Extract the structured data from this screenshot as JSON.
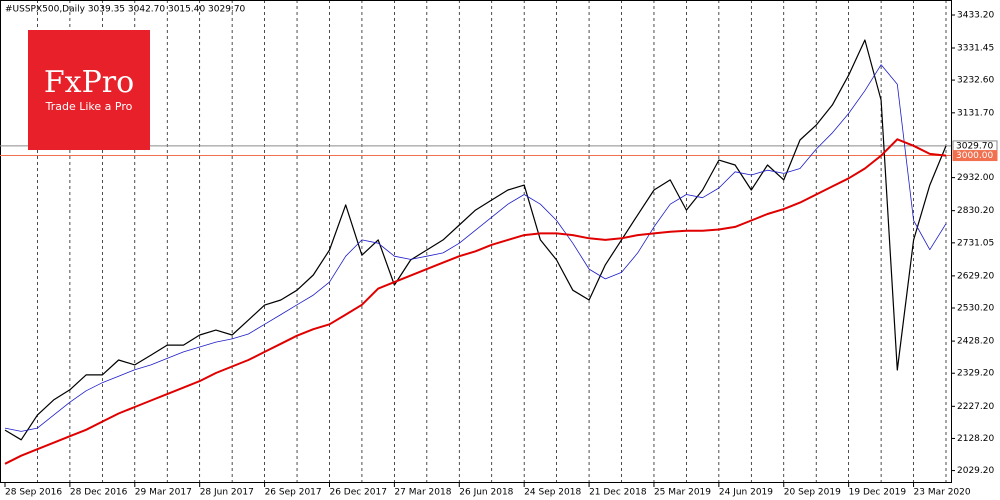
{
  "chart_data": {
    "type": "line",
    "title": "#USSPX500,Daily  3039.35 3042.70 3015.40 3029.70",
    "logo": {
      "brand": "FxPro",
      "tagline": "Trade Like a Pro",
      "color": "#e8202a"
    },
    "categories": [
      "28 Sep 2016",
      null,
      null,
      null,
      "28 Dec 2016",
      null,
      null,
      null,
      "29 Mar 2017",
      null,
      null,
      null,
      "28 Jun 2017",
      null,
      null,
      null,
      "26 Sep 2017",
      null,
      null,
      null,
      "26 Dec 2017",
      null,
      null,
      null,
      "27 Mar 2018",
      null,
      null,
      null,
      "26 Jun 2018",
      null,
      null,
      null,
      "24 Sep 2018",
      null,
      null,
      null,
      "21 Dec 2018",
      null,
      null,
      null,
      "25 Mar 2019",
      null,
      null,
      null,
      "24 Jun 2019",
      null,
      null,
      null,
      "20 Sep 2019",
      null,
      null,
      null,
      "19 Dec 2019",
      null,
      null,
      null,
      "23 Mar 2020",
      null,
      null
    ],
    "series": [
      {
        "color": "#000000",
        "width": 1.2,
        "values": [
          2154,
          2124,
          2200,
          2247,
          2278,
          2324,
          2324,
          2370,
          2355,
          2385,
          2416,
          2416,
          2447,
          2462,
          2447,
          2493,
          2539,
          2555,
          2585,
          2632,
          2709,
          2848,
          2693,
          2740,
          2601,
          2678,
          2709,
          2740,
          2786,
          2832,
          2863,
          2894,
          2909,
          2740,
          2678,
          2585,
          2555,
          2663,
          2740,
          2817,
          2894,
          2925,
          2832,
          2894,
          2986,
          2971,
          2894,
          2971,
          2925,
          3048,
          3094,
          3156,
          3248,
          3356,
          3171,
          2339,
          2740,
          2909,
          3029.7
        ]
      },
      {
        "color": "#1c1cc8",
        "width": 0.8,
        "values": [
          2160,
          2150,
          2160,
          2200,
          2240,
          2275,
          2300,
          2320,
          2340,
          2355,
          2375,
          2395,
          2410,
          2425,
          2435,
          2450,
          2480,
          2510,
          2540,
          2570,
          2610,
          2690,
          2740,
          2730,
          2690,
          2680,
          2690,
          2700,
          2730,
          2770,
          2810,
          2850,
          2880,
          2850,
          2800,
          2730,
          2650,
          2620,
          2640,
          2700,
          2780,
          2850,
          2880,
          2870,
          2900,
          2950,
          2940,
          2955,
          2945,
          2960,
          3020,
          3070,
          3130,
          3200,
          3280,
          3220,
          2800,
          2710,
          2790
        ]
      },
      {
        "color": "#e00000",
        "width": 2,
        "values": [
          2050,
          2075,
          2095,
          2115,
          2135,
          2155,
          2180,
          2205,
          2225,
          2245,
          2265,
          2285,
          2305,
          2330,
          2350,
          2370,
          2395,
          2420,
          2445,
          2465,
          2480,
          2510,
          2540,
          2590,
          2610,
          2630,
          2650,
          2670,
          2690,
          2705,
          2725,
          2740,
          2755,
          2760,
          2760,
          2755,
          2745,
          2740,
          2745,
          2755,
          2760,
          2765,
          2768,
          2768,
          2772,
          2780,
          2800,
          2820,
          2835,
          2855,
          2880,
          2905,
          2930,
          2960,
          3000,
          3050,
          3030,
          3005,
          3000
        ]
      }
    ],
    "hlines": [
      {
        "value": 3029.7,
        "label": "3029.70",
        "color": "#8a8a8a"
      },
      {
        "value": 3000,
        "label": "3000.00",
        "color": "#f07050"
      }
    ],
    "ylim": [
      1990.9,
      3479.4
    ],
    "yticks": [
      {
        "value": 3433.2,
        "label": "3433.20"
      },
      {
        "value": 3331.45,
        "label": "3331.45"
      },
      {
        "value": 3232.6,
        "label": "3232.60"
      },
      {
        "value": 3131.7,
        "label": "3131.70"
      },
      {
        "value": 2932,
        "label": "2932.00"
      },
      {
        "value": 2830.2,
        "label": "2830.20"
      },
      {
        "value": 2731.05,
        "label": "2731.05"
      },
      {
        "value": 2629.2,
        "label": "2629.20"
      },
      {
        "value": 2530.2,
        "label": "2530.20"
      },
      {
        "value": 2428.2,
        "label": "2428.20"
      },
      {
        "value": 2329.2,
        "label": "2329.20"
      },
      {
        "value": 2227.2,
        "label": "2227.20"
      },
      {
        "value": 2128.2,
        "label": "2128.20"
      },
      {
        "value": 2029.2,
        "label": "2029.20"
      }
    ],
    "grid": true
  }
}
